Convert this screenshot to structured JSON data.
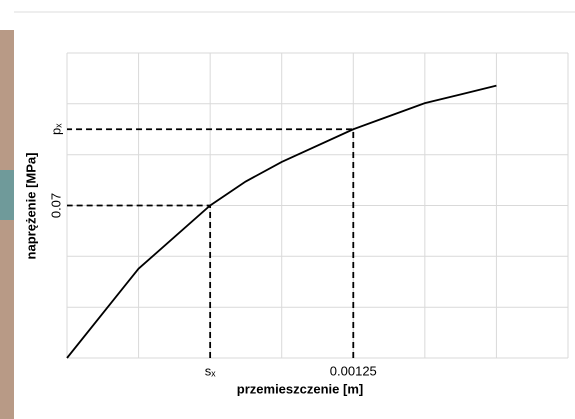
{
  "chart_data": {
    "type": "line",
    "xlabel": "przemieszczenie [m]",
    "ylabel": "naprężenie [MPa]",
    "x": [
      0,
      0.0003125,
      0.000625,
      0.00078,
      0.0009375,
      0.00125,
      0.0015625,
      0.00172,
      0.001875
    ],
    "series": [
      {
        "color": "#000000",
        "values": [
          0,
          0.041,
          0.07,
          0.081,
          0.09,
          0.105,
          0.117,
          0.121,
          0.125
        ]
      }
    ],
    "xlim": [
      0,
      0.0021875
    ],
    "ylim": [
      0,
      0.14
    ],
    "xticks": [
      {
        "value": 0.000625,
        "label": "sₓ"
      },
      0.00125
    ],
    "yticks": [
      0.07,
      {
        "value": 0.105,
        "label": "pₓ"
      }
    ],
    "xgrid": [
      0,
      0.0003125,
      0.000625,
      0.0009375,
      0.00125,
      0.0015625,
      0.001875,
      0.0021875
    ],
    "ygrid": [
      0,
      0.0233,
      0.0467,
      0.07,
      0.0933,
      0.1167,
      0.14
    ],
    "grid": true
  }
}
